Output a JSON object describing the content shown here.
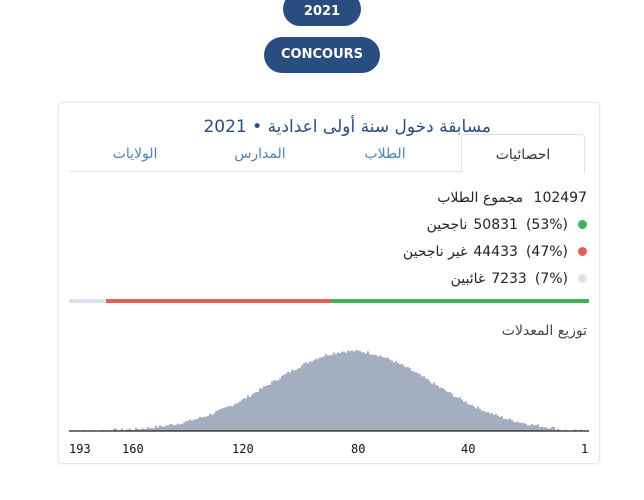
{
  "header": {
    "year_label": "2021",
    "concours_label": "CONCOURS"
  },
  "card": {
    "title": "مسابقة دخول سنة أولى اعدادية • 2021",
    "tabs": [
      {
        "label": "احصائيات",
        "active": true
      },
      {
        "label": "الطلاب",
        "active": false
      },
      {
        "label": "المدارس",
        "active": false
      },
      {
        "label": "الولايات",
        "active": false
      }
    ],
    "stats": {
      "total": {
        "label": "مجموع الطلاب",
        "value": "102497"
      },
      "passed": {
        "label": "ناجحين",
        "value": "50831",
        "percent": "(53%)",
        "color": "#3fb35c"
      },
      "failed": {
        "label": "غير ناجحين",
        "value": "44433",
        "percent": "(47%)",
        "color": "#e0605a"
      },
      "absent": {
        "label": "غائبين",
        "value": "7233",
        "percent": "(7%)",
        "color": "#dde3ec"
      }
    },
    "progress": {
      "passed_fraction": 0.496,
      "failed_fraction": 0.433,
      "absent_fraction": 0.071
    },
    "histogram": {
      "title": "توزيع المعدلات",
      "bar_color": "#a3afbf",
      "ticks": [
        "193",
        "160",
        "120",
        "80",
        "40",
        "1"
      ]
    }
  }
}
